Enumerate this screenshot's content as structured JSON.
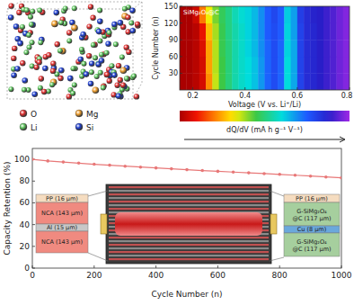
{
  "structure": {
    "legend": [
      {
        "label": "O",
        "color": "#e03030"
      },
      {
        "label": "Mg",
        "color": "#f0a030"
      },
      {
        "label": "Li",
        "color": "#60c860"
      },
      {
        "label": "Si",
        "color": "#2040d0"
      }
    ]
  },
  "chart_data": [
    {
      "type": "heatmap",
      "title": "SiMg₂O₄@C",
      "x_label": "Voltage (V vs. Li⁺/Li)",
      "y_label": "Cycle Number (n)",
      "x": [
        0.1625,
        0.1875,
        0.2125,
        0.2375,
        0.2625,
        0.2875,
        0.3125,
        0.3375,
        0.3625,
        0.3875,
        0.4125,
        0.4375,
        0.4625,
        0.4875,
        0.5125,
        0.5375,
        0.5625,
        0.5875,
        0.6125,
        0.6375,
        0.6625,
        0.6875,
        0.7125,
        0.7375,
        0.7625,
        0.7875
      ],
      "y": [
        15,
        45,
        75,
        105,
        135
      ],
      "z": [
        [
          0,
          0,
          0.02,
          0.06,
          0.22,
          0.36,
          0.45,
          0.5,
          0.55,
          0.58,
          0.6,
          0.63,
          0.68,
          0.74,
          0.78,
          0.74,
          0.6,
          0.66,
          0.8,
          0.85,
          0.86,
          0.88,
          0.9,
          0.92,
          0.95,
          0.97
        ],
        [
          0,
          0,
          0.02,
          0.06,
          0.24,
          0.37,
          0.45,
          0.5,
          0.55,
          0.58,
          0.6,
          0.63,
          0.68,
          0.74,
          0.78,
          0.74,
          0.6,
          0.66,
          0.8,
          0.85,
          0.86,
          0.88,
          0.9,
          0.92,
          0.95,
          0.97
        ],
        [
          0,
          0,
          0.02,
          0.07,
          0.24,
          0.37,
          0.46,
          0.5,
          0.55,
          0.58,
          0.61,
          0.64,
          0.69,
          0.74,
          0.78,
          0.74,
          0.61,
          0.66,
          0.8,
          0.85,
          0.86,
          0.88,
          0.9,
          0.92,
          0.95,
          0.97
        ],
        [
          0,
          0,
          0.02,
          0.09,
          0.27,
          0.38,
          0.46,
          0.51,
          0.55,
          0.58,
          0.61,
          0.64,
          0.69,
          0.75,
          0.78,
          0.75,
          0.61,
          0.67,
          0.8,
          0.85,
          0.86,
          0.88,
          0.9,
          0.92,
          0.95,
          0.97
        ],
        [
          0,
          0,
          0.05,
          0.2,
          0.33,
          0.41,
          0.47,
          0.51,
          0.56,
          0.59,
          0.61,
          0.64,
          0.69,
          0.75,
          0.79,
          0.75,
          0.62,
          0.67,
          0.81,
          0.85,
          0.87,
          0.88,
          0.9,
          0.92,
          0.95,
          0.97
        ]
      ],
      "xlim": [
        0.15,
        0.8
      ],
      "ylim": [
        0,
        150
      ],
      "xticks": [
        0.2,
        0.4,
        0.6,
        0.8
      ],
      "yticks": [
        30,
        60,
        90,
        120,
        150
      ],
      "colorbar": {
        "label": "dQ/dV (mA h g⁻¹ V⁻¹)",
        "range": [
          0,
          1
        ]
      }
    },
    {
      "type": "line",
      "x_label": "Cycle Number (n)",
      "y_label": "Capacity Retention (%)",
      "x": [
        0,
        50,
        100,
        150,
        200,
        250,
        300,
        350,
        400,
        450,
        500,
        550,
        600,
        650,
        700,
        750,
        800,
        850,
        900,
        950,
        1000
      ],
      "series": [
        {
          "name": "G-SiMg₂O₄@C",
          "color": "#e87878",
          "marker": "circle",
          "values": [
            100,
            98.5,
            97.5,
            96.5,
            95.5,
            94.6,
            93.7,
            92.9,
            92.1,
            91.3,
            90.5,
            89.7,
            89,
            88.3,
            87.6,
            86.9,
            86.2,
            85.4,
            84.6,
            83.8,
            83
          ]
        }
      ],
      "xlim": [
        0,
        1000
      ],
      "ylim": [
        0,
        110
      ],
      "xticks": [
        0,
        200,
        400,
        600,
        800,
        1000
      ],
      "yticks": [
        0,
        20,
        40,
        60,
        80,
        100
      ],
      "annotations": {
        "cathode": [
          "PP (16 μm)",
          "NCA (143 μm)",
          "Al (15 μm)",
          "NCA (143 μm)"
        ],
        "anode": [
          "PP (16 μm)",
          "G-SiMg₂O₄@C (117 μm)",
          "Cu (8 μm)",
          "G-SiMg₂O₄@C (117 μm)"
        ]
      }
    }
  ]
}
